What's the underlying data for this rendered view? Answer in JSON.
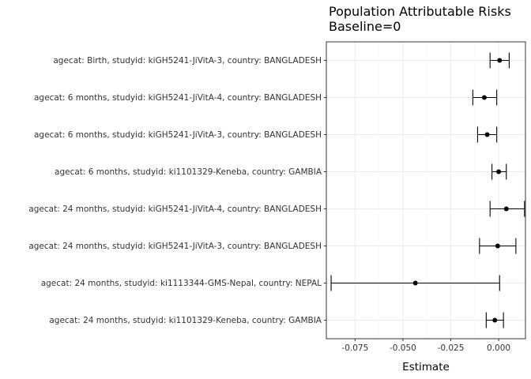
{
  "chart_data": {
    "type": "forest",
    "title": "Population Attributable Risks",
    "subtitle": "Baseline=0",
    "xlabel": "Estimate",
    "xlim": [
      -0.09,
      0.014
    ],
    "xticks": [
      -0.075,
      -0.05,
      -0.025,
      0.0
    ],
    "xtick_labels": [
      "-0.075",
      "-0.050",
      "-0.025",
      "0.000"
    ],
    "grid": true,
    "rows": [
      {
        "label": "agecat: Birth, studyid: kiGH5241-JiVitA-3, country: BANGLADESH",
        "estimate": 0.0005,
        "lower": -0.0045,
        "upper": 0.0055
      },
      {
        "label": "agecat: 6 months, studyid: kiGH5241-JiVitA-4, country: BANGLADESH",
        "estimate": -0.0075,
        "lower": -0.0135,
        "upper": -0.001
      },
      {
        "label": "agecat: 6 months, studyid: kiGH5241-JiVitA-3, country: BANGLADESH",
        "estimate": -0.006,
        "lower": -0.011,
        "upper": -0.001
      },
      {
        "label": "agecat: 6 months, studyid: ki1101329-Keneba, country: GAMBIA",
        "estimate": 0.0,
        "lower": -0.0035,
        "upper": 0.004
      },
      {
        "label": "agecat: 24 months, studyid: kiGH5241-JiVitA-4, country: BANGLADESH",
        "estimate": 0.004,
        "lower": -0.0045,
        "upper": 0.0135
      },
      {
        "label": "agecat: 24 months, studyid: kiGH5241-JiVitA-3, country: BANGLADESH",
        "estimate": -0.0005,
        "lower": -0.01,
        "upper": 0.009
      },
      {
        "label": "agecat: 24 months, studyid: ki1113344-GMS-Nepal, country: NEPAL",
        "estimate": -0.0435,
        "lower": -0.0875,
        "upper": 0.0005
      },
      {
        "label": "agecat: 24 months, studyid: ki1101329-Keneba, country: GAMBIA",
        "estimate": -0.002,
        "lower": -0.0065,
        "upper": 0.0025
      }
    ]
  },
  "colors": {
    "panel_border": "#333333",
    "grid_major": "#ebebeb",
    "grid_minor": "#f5f5f5",
    "point": "#000000",
    "errorbar": "#000000",
    "tick": "#333333"
  }
}
